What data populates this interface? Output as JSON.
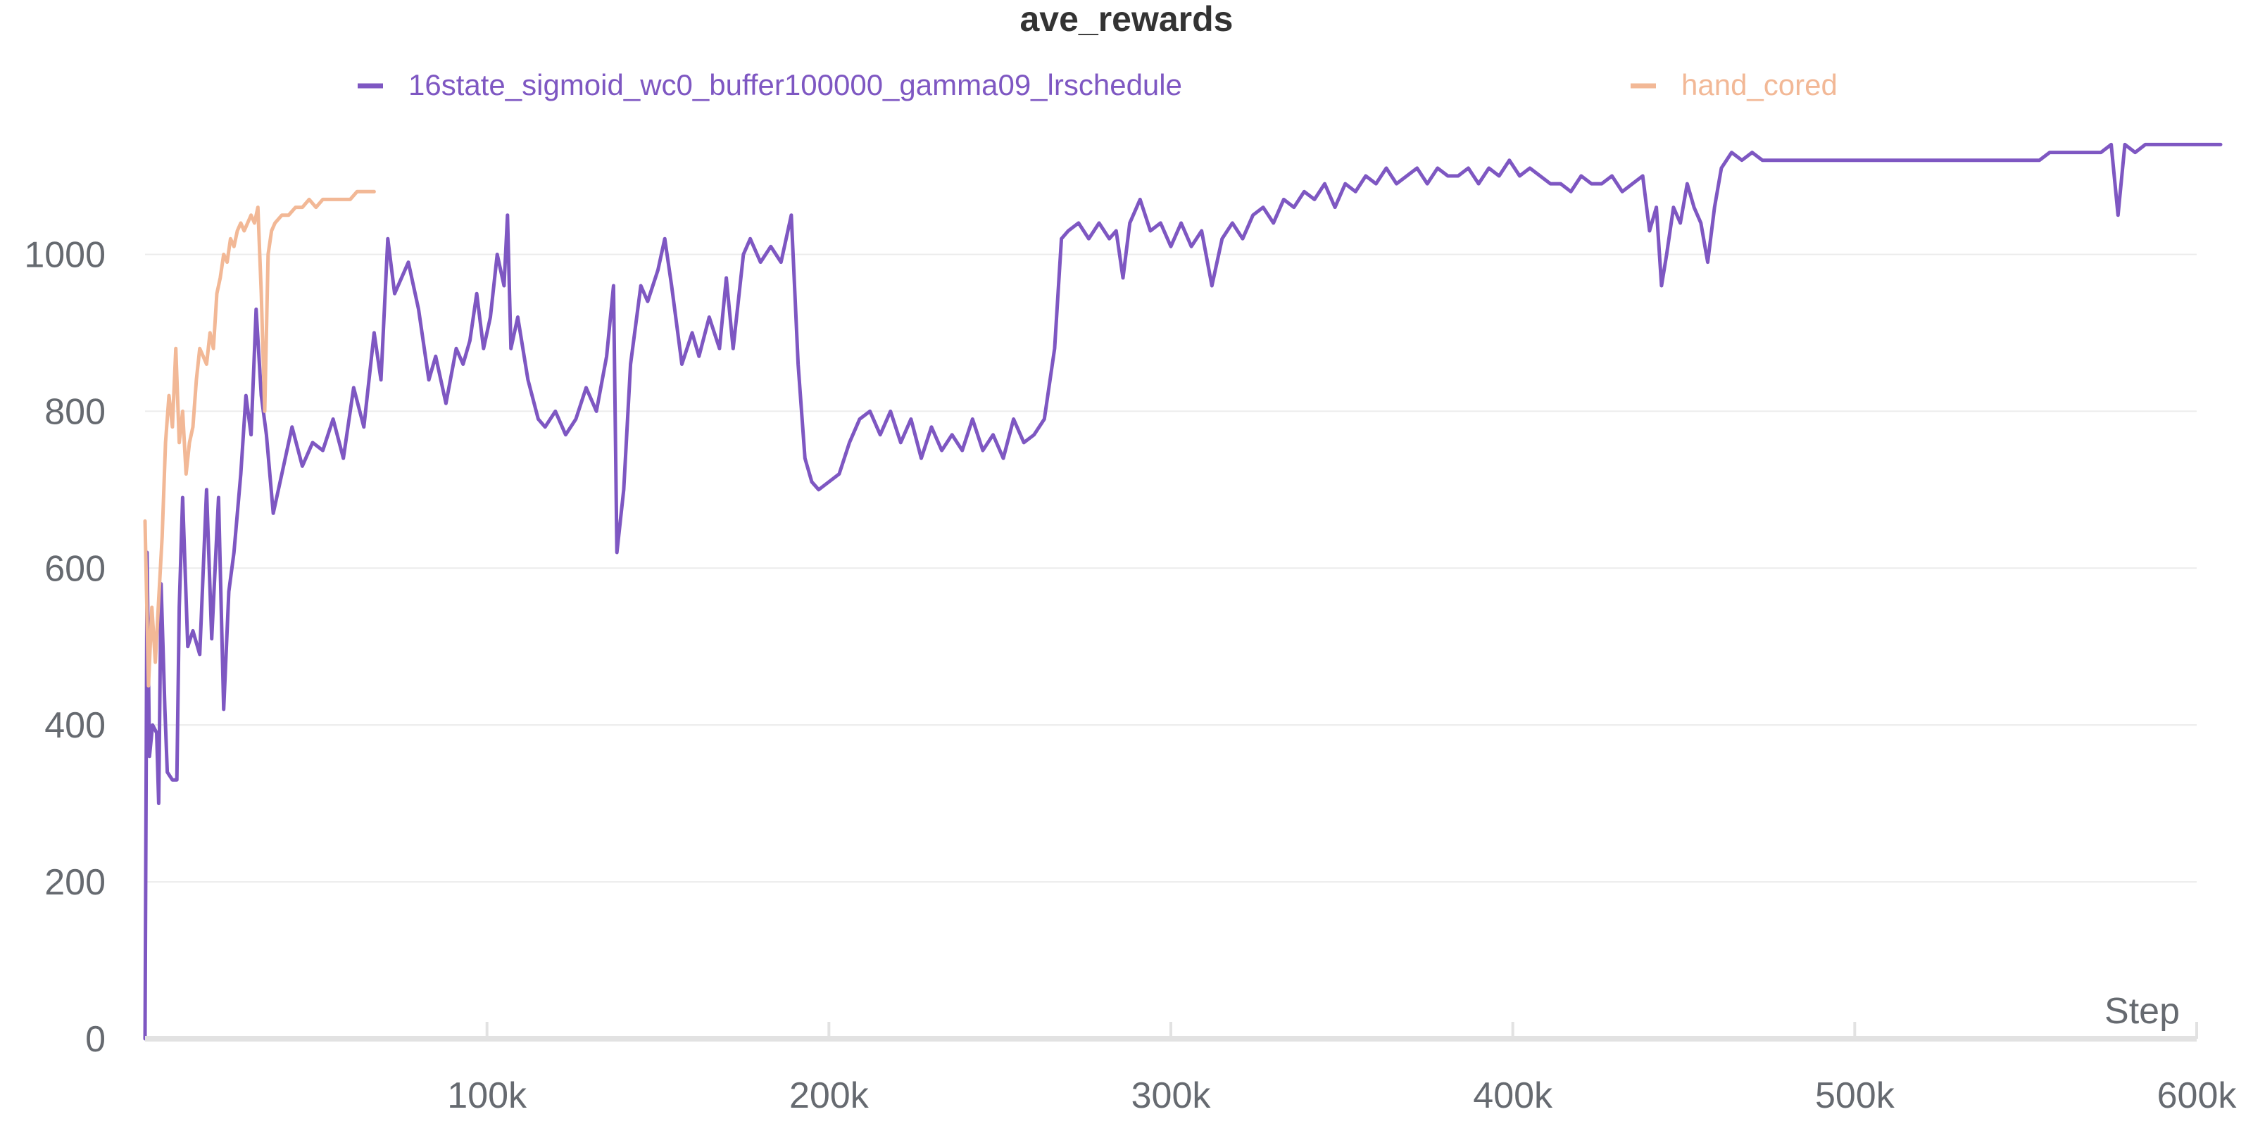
{
  "chart_data": {
    "type": "line",
    "title": "ave_rewards",
    "xlabel": "Step",
    "ylabel": "",
    "xlim": [
      0,
      600000
    ],
    "ylim": [
      0,
      1100
    ],
    "grid": true,
    "legend_position": "top",
    "x_ticks": [
      {
        "value": 100000,
        "label": "100k"
      },
      {
        "value": 200000,
        "label": "200k"
      },
      {
        "value": 300000,
        "label": "300k"
      },
      {
        "value": 400000,
        "label": "400k"
      },
      {
        "value": 500000,
        "label": "500k"
      },
      {
        "value": 600000,
        "label": "600k"
      }
    ],
    "y_ticks": [
      {
        "value": 0,
        "label": "0"
      },
      {
        "value": 200,
        "label": "200"
      },
      {
        "value": 400,
        "label": "400"
      },
      {
        "value": 600,
        "label": "600"
      },
      {
        "value": 800,
        "label": "800"
      },
      {
        "value": 1000,
        "label": "1000"
      }
    ],
    "series": [
      {
        "name": "16state_sigmoid_wc0_buffer100000_gamma09_lrschedule",
        "color": "#7e57c2",
        "points": [
          [
            0,
            0
          ],
          [
            600,
            620
          ],
          [
            1300,
            360
          ],
          [
            2200,
            400
          ],
          [
            3400,
            390
          ],
          [
            4000,
            300
          ],
          [
            4700,
            580
          ],
          [
            5800,
            420
          ],
          [
            6500,
            340
          ],
          [
            8000,
            330
          ],
          [
            9300,
            330
          ],
          [
            10000,
            550
          ],
          [
            11000,
            690
          ],
          [
            12500,
            500
          ],
          [
            14000,
            520
          ],
          [
            16000,
            490
          ],
          [
            18000,
            700
          ],
          [
            19500,
            510
          ],
          [
            21500,
            690
          ],
          [
            23000,
            420
          ],
          [
            24500,
            570
          ],
          [
            26000,
            620
          ],
          [
            28000,
            720
          ],
          [
            29500,
            820
          ],
          [
            31000,
            770
          ],
          [
            32500,
            930
          ],
          [
            34000,
            820
          ],
          [
            35500,
            770
          ],
          [
            37500,
            670
          ],
          [
            40000,
            720
          ],
          [
            43000,
            780
          ],
          [
            46000,
            730
          ],
          [
            49000,
            760
          ],
          [
            52000,
            750
          ],
          [
            55000,
            790
          ],
          [
            58000,
            740
          ],
          [
            61000,
            830
          ],
          [
            64000,
            780
          ],
          [
            67000,
            900
          ],
          [
            69000,
            840
          ],
          [
            71000,
            1020
          ],
          [
            73000,
            950
          ],
          [
            75000,
            970
          ],
          [
            77000,
            990
          ],
          [
            80000,
            930
          ],
          [
            83000,
            840
          ],
          [
            85000,
            870
          ],
          [
            88000,
            810
          ],
          [
            91000,
            880
          ],
          [
            93000,
            860
          ],
          [
            95000,
            890
          ],
          [
            97000,
            950
          ],
          [
            99000,
            880
          ],
          [
            101000,
            920
          ],
          [
            103000,
            1000
          ],
          [
            105000,
            960
          ],
          [
            106000,
            1050
          ],
          [
            107000,
            880
          ],
          [
            109000,
            920
          ],
          [
            112000,
            840
          ],
          [
            115000,
            790
          ],
          [
            117000,
            780
          ],
          [
            120000,
            800
          ],
          [
            123000,
            770
          ],
          [
            126000,
            790
          ],
          [
            129000,
            830
          ],
          [
            132000,
            800
          ],
          [
            135000,
            870
          ],
          [
            137000,
            960
          ],
          [
            138000,
            620
          ],
          [
            140000,
            700
          ],
          [
            142000,
            860
          ],
          [
            145000,
            960
          ],
          [
            147000,
            940
          ],
          [
            150000,
            980
          ],
          [
            152000,
            1020
          ],
          [
            154000,
            960
          ],
          [
            157000,
            860
          ],
          [
            160000,
            900
          ],
          [
            162000,
            870
          ],
          [
            165000,
            920
          ],
          [
            168000,
            880
          ],
          [
            170000,
            970
          ],
          [
            172000,
            880
          ],
          [
            175000,
            1000
          ],
          [
            177000,
            1020
          ],
          [
            180000,
            990
          ],
          [
            183000,
            1010
          ],
          [
            186000,
            990
          ],
          [
            189000,
            1050
          ],
          [
            191000,
            860
          ],
          [
            193000,
            740
          ],
          [
            195000,
            710
          ],
          [
            197000,
            700
          ],
          [
            200000,
            710
          ],
          [
            203000,
            720
          ],
          [
            206000,
            760
          ],
          [
            209000,
            790
          ],
          [
            212000,
            800
          ],
          [
            215000,
            770
          ],
          [
            218000,
            800
          ],
          [
            221000,
            760
          ],
          [
            224000,
            790
          ],
          [
            227000,
            740
          ],
          [
            230000,
            780
          ],
          [
            233000,
            750
          ],
          [
            236000,
            770
          ],
          [
            239000,
            750
          ],
          [
            242000,
            790
          ],
          [
            245000,
            750
          ],
          [
            248000,
            770
          ],
          [
            251000,
            740
          ],
          [
            254000,
            790
          ],
          [
            257000,
            760
          ],
          [
            260000,
            770
          ],
          [
            263000,
            790
          ],
          [
            266000,
            880
          ],
          [
            268000,
            1020
          ],
          [
            270000,
            1030
          ],
          [
            273000,
            1040
          ],
          [
            276000,
            1020
          ],
          [
            279000,
            1040
          ],
          [
            282000,
            1020
          ],
          [
            284000,
            1030
          ],
          [
            286000,
            970
          ],
          [
            288000,
            1040
          ],
          [
            291000,
            1070
          ],
          [
            294000,
            1030
          ],
          [
            297000,
            1040
          ],
          [
            300000,
            1010
          ],
          [
            303000,
            1040
          ],
          [
            306000,
            1010
          ],
          [
            309000,
            1030
          ],
          [
            312000,
            960
          ],
          [
            315000,
            1020
          ],
          [
            318000,
            1040
          ],
          [
            321000,
            1020
          ],
          [
            324000,
            1050
          ],
          [
            327000,
            1060
          ],
          [
            330000,
            1040
          ],
          [
            333000,
            1070
          ],
          [
            336000,
            1060
          ],
          [
            339000,
            1080
          ],
          [
            342000,
            1070
          ],
          [
            345000,
            1090
          ],
          [
            348000,
            1060
          ],
          [
            351000,
            1090
          ],
          [
            354000,
            1080
          ],
          [
            357000,
            1100
          ],
          [
            360000,
            1090
          ],
          [
            363000,
            1110
          ],
          [
            366000,
            1090
          ],
          [
            369000,
            1100
          ],
          [
            372000,
            1110
          ],
          [
            375000,
            1090
          ],
          [
            378000,
            1110
          ],
          [
            381000,
            1100
          ],
          [
            384000,
            1100
          ],
          [
            387000,
            1110
          ],
          [
            390000,
            1090
          ],
          [
            393000,
            1110
          ],
          [
            396000,
            1100
          ],
          [
            399000,
            1120
          ],
          [
            402000,
            1100
          ],
          [
            405000,
            1110
          ],
          [
            408000,
            1100
          ],
          [
            411000,
            1090
          ],
          [
            414000,
            1090
          ],
          [
            417000,
            1080
          ],
          [
            420000,
            1100
          ],
          [
            423000,
            1090
          ],
          [
            426000,
            1090
          ],
          [
            429000,
            1100
          ],
          [
            432000,
            1080
          ],
          [
            435000,
            1090
          ],
          [
            438000,
            1100
          ],
          [
            440000,
            1030
          ],
          [
            442000,
            1060
          ],
          [
            443500,
            960
          ],
          [
            445000,
            1000
          ],
          [
            447000,
            1060
          ],
          [
            449000,
            1040
          ],
          [
            451000,
            1090
          ],
          [
            453000,
            1060
          ],
          [
            455000,
            1040
          ],
          [
            457000,
            990
          ],
          [
            459000,
            1060
          ],
          [
            461000,
            1110
          ],
          [
            464000,
            1130
          ],
          [
            467000,
            1120
          ],
          [
            470000,
            1130
          ],
          [
            473000,
            1120
          ],
          [
            476000,
            1120
          ],
          [
            479000,
            1120
          ],
          [
            482000,
            1120
          ],
          [
            485000,
            1120
          ],
          [
            488000,
            1120
          ],
          [
            491000,
            1120
          ],
          [
            494000,
            1120
          ],
          [
            497000,
            1120
          ],
          [
            500000,
            1120
          ],
          [
            503000,
            1120
          ],
          [
            506000,
            1120
          ],
          [
            509000,
            1120
          ],
          [
            512000,
            1120
          ],
          [
            515000,
            1120
          ],
          [
            518000,
            1120
          ],
          [
            521000,
            1120
          ],
          [
            524000,
            1120
          ],
          [
            527000,
            1120
          ],
          [
            530000,
            1120
          ],
          [
            533000,
            1120
          ],
          [
            536000,
            1120
          ],
          [
            539000,
            1120
          ],
          [
            542000,
            1120
          ],
          [
            545000,
            1120
          ],
          [
            548000,
            1120
          ],
          [
            551000,
            1120
          ],
          [
            554000,
            1120
          ],
          [
            557000,
            1130
          ],
          [
            560000,
            1130
          ],
          [
            563000,
            1130
          ],
          [
            566000,
            1130
          ],
          [
            569000,
            1130
          ],
          [
            572000,
            1130
          ],
          [
            575000,
            1140
          ],
          [
            577000,
            1050
          ],
          [
            579000,
            1140
          ],
          [
            582000,
            1130
          ],
          [
            585000,
            1140
          ],
          [
            588000,
            1140
          ],
          [
            591000,
            1140
          ],
          [
            594000,
            1140
          ],
          [
            597000,
            1140
          ],
          [
            600000,
            1140
          ],
          [
            603000,
            1140
          ],
          [
            607000,
            1140
          ]
        ]
      },
      {
        "name": "hand_cored",
        "color": "#f2b896",
        "points": [
          [
            0,
            660
          ],
          [
            1000,
            450
          ],
          [
            2000,
            550
          ],
          [
            3000,
            480
          ],
          [
            4000,
            560
          ],
          [
            5000,
            640
          ],
          [
            6000,
            760
          ],
          [
            7000,
            820
          ],
          [
            8000,
            780
          ],
          [
            9000,
            880
          ],
          [
            10000,
            760
          ],
          [
            11000,
            800
          ],
          [
            12000,
            720
          ],
          [
            13000,
            760
          ],
          [
            14000,
            780
          ],
          [
            15000,
            840
          ],
          [
            16000,
            880
          ],
          [
            17000,
            870
          ],
          [
            18000,
            860
          ],
          [
            19000,
            900
          ],
          [
            20000,
            880
          ],
          [
            21000,
            950
          ],
          [
            22000,
            970
          ],
          [
            23000,
            1000
          ],
          [
            24000,
            990
          ],
          [
            25000,
            1020
          ],
          [
            26000,
            1010
          ],
          [
            27000,
            1030
          ],
          [
            28000,
            1040
          ],
          [
            29000,
            1030
          ],
          [
            30000,
            1040
          ],
          [
            31000,
            1050
          ],
          [
            32000,
            1040
          ],
          [
            33000,
            1060
          ],
          [
            34000,
            950
          ],
          [
            35000,
            800
          ],
          [
            36000,
            1000
          ],
          [
            37000,
            1030
          ],
          [
            38000,
            1040
          ],
          [
            40000,
            1050
          ],
          [
            42000,
            1050
          ],
          [
            44000,
            1060
          ],
          [
            46000,
            1060
          ],
          [
            48000,
            1070
          ],
          [
            50000,
            1060
          ],
          [
            52000,
            1070
          ],
          [
            54000,
            1070
          ],
          [
            56000,
            1070
          ],
          [
            58000,
            1070
          ],
          [
            60000,
            1070
          ],
          [
            62000,
            1080
          ],
          [
            64000,
            1080
          ],
          [
            66000,
            1080
          ],
          [
            67000,
            1080
          ]
        ]
      }
    ]
  }
}
